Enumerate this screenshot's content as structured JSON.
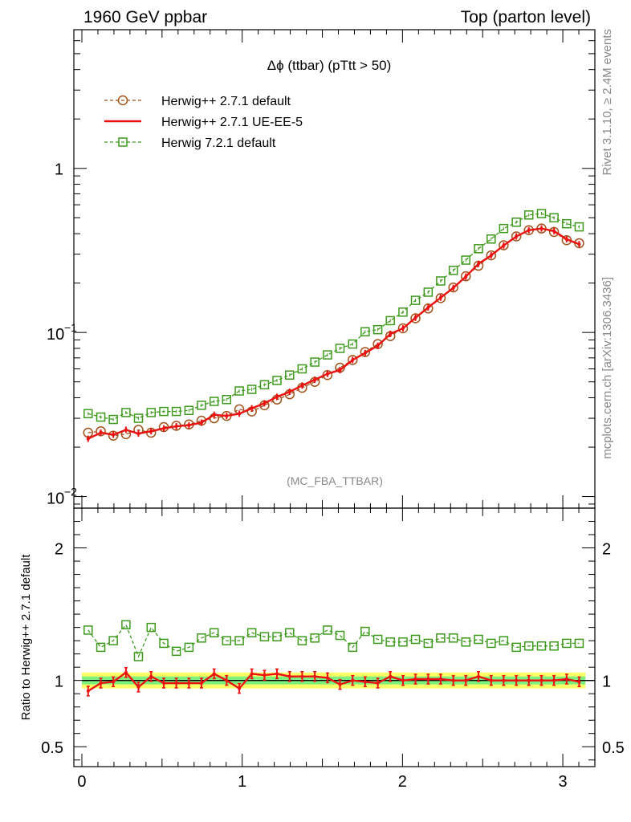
{
  "header": {
    "left": "1960 GeV ppbar",
    "right": "Top (parton level)"
  },
  "side": {
    "rivet": "Rivet 3.1.10, ≥ 2.4M events",
    "mcplots": "mcplots.cern.ch [arXiv:1306.3436]"
  },
  "colors": {
    "series1": "#a0521b",
    "series2": "#ee1111",
    "series3": "#3d9a1c",
    "band_inner": "#7df07d",
    "band_outer": "#ffff66"
  },
  "chart_data": [
    {
      "type": "line",
      "title": "Δϕ (ttbar) (pTtt > 50)",
      "watermark": "(MC_FBA_TTBAR)",
      "xlim": [
        -0.05,
        3.2
      ],
      "ylim": [
        0.0085,
        7.0
      ],
      "yscale": "log",
      "legend_position": "top-left",
      "yticks": [
        {
          "value": 0.01,
          "label": "10",
          "exp": "−2"
        },
        {
          "value": 0.1,
          "label": "10",
          "exp": "−1"
        },
        {
          "value": 1,
          "label": "1",
          "exp": ""
        }
      ],
      "x": [
        0.039,
        0.118,
        0.196,
        0.275,
        0.353,
        0.432,
        0.511,
        0.589,
        0.668,
        0.746,
        0.825,
        0.903,
        0.982,
        1.06,
        1.139,
        1.217,
        1.296,
        1.374,
        1.453,
        1.532,
        1.61,
        1.689,
        1.767,
        1.846,
        1.924,
        2.003,
        2.081,
        2.16,
        2.238,
        2.317,
        2.395,
        2.474,
        2.553,
        2.631,
        2.71,
        2.788,
        2.867,
        2.945,
        3.024,
        3.102
      ],
      "series": [
        {
          "name": "Herwig++ 2.7.1 default",
          "style": "dashed-circle",
          "values": [
            0.0245,
            0.025,
            0.0235,
            0.024,
            0.0255,
            0.0245,
            0.0265,
            0.027,
            0.0275,
            0.029,
            0.03,
            0.031,
            0.034,
            0.033,
            0.036,
            0.039,
            0.042,
            0.046,
            0.05,
            0.055,
            0.061,
            0.068,
            0.076,
            0.085,
            0.095,
            0.106,
            0.122,
            0.14,
            0.162,
            0.188,
            0.22,
            0.255,
            0.295,
            0.34,
            0.385,
            0.42,
            0.43,
            0.41,
            0.365,
            0.35
          ]
        },
        {
          "name": "Herwig++ 2.7.1 UE-EE-5",
          "style": "solid-line",
          "values": [
            0.0225,
            0.0245,
            0.0238,
            0.0255,
            0.0242,
            0.025,
            0.026,
            0.0268,
            0.0272,
            0.0282,
            0.0315,
            0.031,
            0.032,
            0.0345,
            0.037,
            0.0405,
            0.0435,
            0.0475,
            0.0515,
            0.056,
            0.059,
            0.068,
            0.075,
            0.083,
            0.098,
            0.106,
            0.123,
            0.142,
            0.163,
            0.187,
            0.219,
            0.262,
            0.295,
            0.339,
            0.385,
            0.42,
            0.43,
            0.415,
            0.37,
            0.345
          ]
        },
        {
          "name": "Herwig 7.2.1 default",
          "style": "dashed-square",
          "values": [
            0.032,
            0.0305,
            0.0295,
            0.0325,
            0.03,
            0.0325,
            0.033,
            0.033,
            0.0335,
            0.036,
            0.038,
            0.039,
            0.044,
            0.045,
            0.048,
            0.051,
            0.055,
            0.06,
            0.066,
            0.073,
            0.08,
            0.085,
            0.101,
            0.104,
            0.118,
            0.133,
            0.157,
            0.176,
            0.206,
            0.239,
            0.276,
            0.324,
            0.371,
            0.43,
            0.47,
            0.52,
            0.53,
            0.5,
            0.46,
            0.44
          ]
        }
      ]
    },
    {
      "type": "line",
      "ylabel": "Ratio to Herwig++ 2.7.1 default",
      "xlim": [
        -0.05,
        3.2
      ],
      "ylim": [
        0.35,
        2.3
      ],
      "yticks": [
        0.5,
        1,
        2
      ],
      "xticks": [
        0,
        1,
        2,
        3
      ],
      "x": [
        0.039,
        0.118,
        0.196,
        0.275,
        0.353,
        0.432,
        0.511,
        0.589,
        0.668,
        0.746,
        0.825,
        0.903,
        0.982,
        1.06,
        1.139,
        1.217,
        1.296,
        1.374,
        1.453,
        1.532,
        1.61,
        1.689,
        1.767,
        1.846,
        1.924,
        2.003,
        2.081,
        2.16,
        2.238,
        2.317,
        2.395,
        2.474,
        2.553,
        2.631,
        2.71,
        2.788,
        2.867,
        2.945,
        3.024,
        3.102
      ],
      "band_inner": [
        0.97,
        1.03
      ],
      "band_outer": [
        0.94,
        1.06
      ],
      "series": [
        {
          "name": "Herwig++ 2.7.1 UE-EE-5",
          "style": "solid-line",
          "values": [
            0.92,
            0.98,
            0.99,
            1.06,
            0.95,
            1.03,
            0.98,
            0.98,
            0.98,
            0.98,
            1.05,
            1.0,
            0.94,
            1.05,
            1.04,
            1.05,
            1.03,
            1.03,
            1.03,
            1.02,
            0.97,
            1.0,
            0.99,
            0.98,
            1.03,
            1.0,
            1.01,
            1.01,
            1.01,
            1.0,
            1.0,
            1.03,
            1.0,
            1.0,
            1.0,
            1.0,
            1.0,
            1.0,
            1.01,
            0.99
          ]
        },
        {
          "name": "Herwig 7.2.1 default",
          "style": "dashed-square",
          "values": [
            1.38,
            1.25,
            1.3,
            1.42,
            1.18,
            1.4,
            1.28,
            1.22,
            1.25,
            1.32,
            1.36,
            1.3,
            1.3,
            1.36,
            1.33,
            1.33,
            1.36,
            1.3,
            1.32,
            1.38,
            1.34,
            1.25,
            1.37,
            1.31,
            1.29,
            1.29,
            1.31,
            1.28,
            1.32,
            1.32,
            1.29,
            1.31,
            1.28,
            1.3,
            1.25,
            1.26,
            1.26,
            1.26,
            1.28,
            1.28
          ]
        }
      ]
    }
  ]
}
